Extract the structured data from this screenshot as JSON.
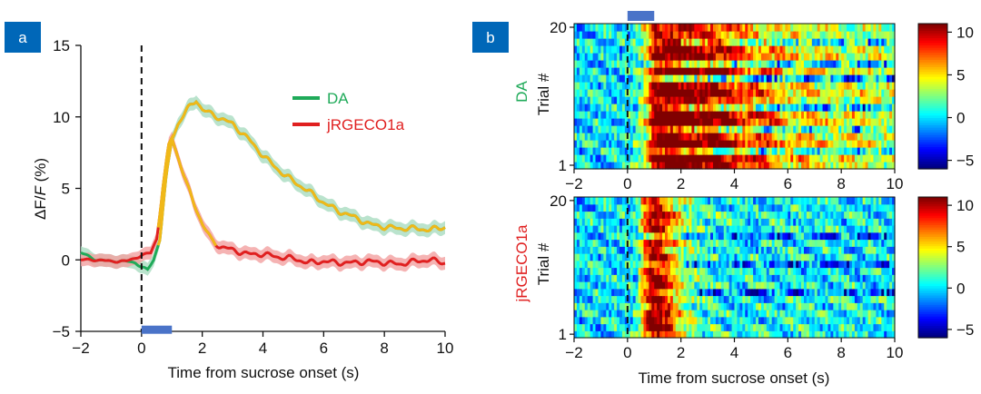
{
  "panel_labels": {
    "a": "a",
    "b": "b"
  },
  "colors": {
    "badge": "#0067b8",
    "da": "#1faa59",
    "jrgeco": "#e02020",
    "overlay": "#f0b818",
    "stim": "#4a73c8"
  },
  "chart_data": [
    {
      "id": "a",
      "type": "line",
      "title": "",
      "xlabel": "Time from sucrose onset (s)",
      "ylabel_parts": [
        "ΔF",
        "/",
        "F",
        " (%)"
      ],
      "xlim": [
        -2,
        10
      ],
      "ylim": [
        -5,
        15
      ],
      "xticks": [
        "−2",
        "0",
        "2",
        "4",
        "6",
        "8",
        "10"
      ],
      "yticks": [
        "−5",
        "0",
        "5",
        "10",
        "15"
      ],
      "xtick_values": [
        -2,
        0,
        2,
        4,
        6,
        8,
        10
      ],
      "ytick_values": [
        -5,
        0,
        5,
        10,
        15
      ],
      "onset_line_x": 0,
      "stimulus_bar": [
        0,
        1
      ],
      "legend": [
        {
          "label": "DA",
          "color": "#1faa59"
        },
        {
          "label": "jRGECO1a",
          "color": "#e02020"
        }
      ],
      "series": [
        {
          "name": "DA",
          "x": [
            -2,
            -1.5,
            -1,
            -0.5,
            -0.2,
            0,
            0.2,
            0.4,
            0.6,
            0.8,
            1,
            1.2,
            1.5,
            1.8,
            2,
            2.5,
            3,
            3.5,
            4,
            4.5,
            5,
            5.5,
            6,
            6.5,
            7,
            7.5,
            8,
            8.5,
            9,
            9.5,
            10
          ],
          "y": [
            0.5,
            0,
            -0.1,
            -0.1,
            -0.2,
            -0.5,
            -0.7,
            0,
            1.5,
            5.5,
            8.5,
            9.5,
            10.5,
            11.2,
            10.5,
            10,
            9.5,
            8.5,
            7.3,
            6.3,
            5.5,
            4.8,
            4,
            3.4,
            3,
            2.5,
            2.3,
            2.2,
            2.2,
            2.1,
            2.3
          ]
        },
        {
          "name": "jRGECO1a",
          "x": [
            -2,
            -1.5,
            -1,
            -0.5,
            0,
            0.3,
            0.5,
            0.7,
            0.9,
            1,
            1.2,
            1.5,
            1.8,
            2,
            2.3,
            2.6,
            3,
            3.5,
            4,
            4.5,
            5,
            5.5,
            6,
            6.5,
            7,
            7.5,
            8,
            8.5,
            9,
            9.5,
            10
          ],
          "y": [
            0,
            0,
            -0.1,
            -0.1,
            0.3,
            0.5,
            1.5,
            5,
            8,
            8.6,
            7.2,
            5.2,
            3.6,
            2.5,
            1.4,
            0.9,
            0.7,
            0.4,
            0.4,
            0.2,
            0.1,
            -0.2,
            -0.1,
            -0.2,
            -0.2,
            -0.1,
            -0.2,
            -0.3,
            -0.1,
            0,
            -0.2
          ]
        }
      ]
    },
    {
      "id": "b-top",
      "type": "heatmap",
      "title": "",
      "row_label": "DA",
      "ylabel": "Trial #",
      "xlabel": "",
      "xlim": [
        -2,
        10
      ],
      "yticks": [
        "1",
        "20"
      ],
      "xticks": [
        "−2",
        "0",
        "2",
        "4",
        "6",
        "8",
        "10"
      ],
      "colorbar_ticks": [
        "10",
        "5",
        "0",
        "−5"
      ],
      "colorbar_values": [
        10,
        5,
        0,
        -5
      ],
      "clim": [
        -6,
        11
      ],
      "trials": 20,
      "time_bins": 120,
      "mean_profile": {
        "t": [
          -2,
          0,
          0.5,
          0.8,
          1,
          1.5,
          2,
          3,
          4,
          5,
          6,
          7,
          8,
          10
        ],
        "v": [
          0,
          0,
          2,
          6,
          11,
          12,
          11.5,
          10.5,
          8.5,
          6.5,
          5,
          4.2,
          3.8,
          3.5
        ]
      },
      "low_trials": [
        2,
        5,
        8,
        12,
        14,
        17
      ]
    },
    {
      "id": "b-bottom",
      "type": "heatmap",
      "title": "",
      "row_label": "jRGECO1a",
      "ylabel": "Trial #",
      "xlabel": "Time from sucrose onset (s)",
      "xlim": [
        -2,
        10
      ],
      "yticks": [
        "1",
        "20"
      ],
      "xticks": [
        "−2",
        "0",
        "2",
        "4",
        "6",
        "8",
        "10"
      ],
      "colorbar_ticks": [
        "10",
        "5",
        "0",
        "−5"
      ],
      "colorbar_values": [
        10,
        5,
        0,
        -5
      ],
      "clim": [
        -6,
        11
      ],
      "trials": 20,
      "time_bins": 120,
      "mean_profile": {
        "t": [
          -2,
          0,
          0.4,
          0.6,
          0.9,
          1.2,
          1.5,
          1.8,
          2.2,
          3,
          4,
          6,
          10
        ],
        "v": [
          0,
          0,
          1,
          6,
          10,
          10.5,
          8,
          5,
          2.8,
          1.2,
          0.5,
          0.5,
          0.3
        ]
      },
      "low_trials": [
        6,
        10,
        14
      ]
    }
  ]
}
